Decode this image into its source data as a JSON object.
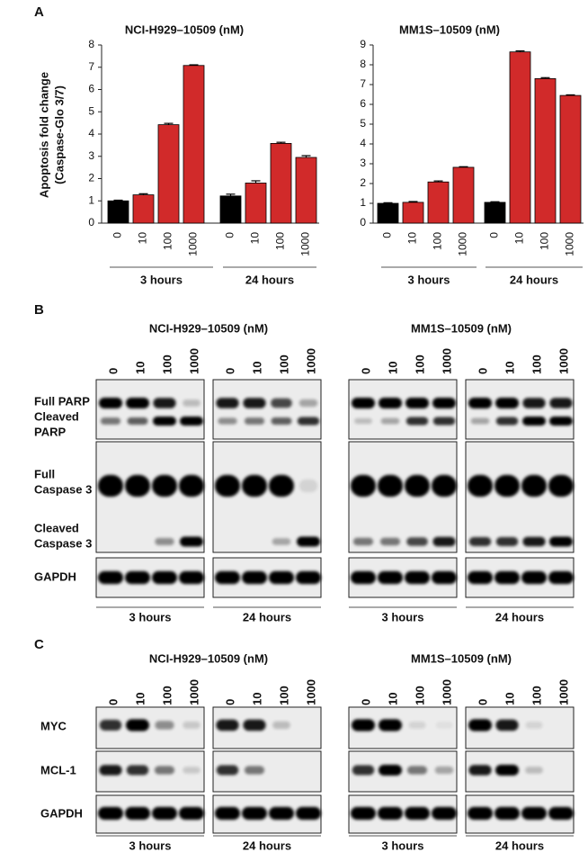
{
  "panel_labels": [
    "A",
    "B",
    "C"
  ],
  "chart_data": [
    {
      "type": "bar",
      "title": "NCI-H929–10509 (nM)",
      "y_label": [
        "Apoptosis fold change",
        "(Caspase-Glo 3/7)"
      ],
      "categories": [
        "0",
        "10",
        "100",
        "1000",
        "0",
        "10",
        "100",
        "1000"
      ],
      "groups": [
        "3 hours",
        "24 hours"
      ],
      "values": [
        1.0,
        1.27,
        4.42,
        7.08,
        1.22,
        1.8,
        3.58,
        2.95
      ],
      "errors": [
        0.03,
        0.05,
        0.06,
        0.03,
        0.08,
        0.1,
        0.05,
        0.08
      ],
      "colors": [
        "#000000",
        "#d12a2a",
        "#d12a2a",
        "#d12a2a",
        "#000000",
        "#d12a2a",
        "#d12a2a",
        "#d12a2a"
      ],
      "ylim": [
        0,
        8
      ],
      "yticks": [
        0,
        1,
        2,
        3,
        4,
        5,
        6,
        7,
        8
      ]
    },
    {
      "type": "bar",
      "title": "MM1S–10509 (nM)",
      "categories": [
        "0",
        "10",
        "100",
        "1000",
        "0",
        "10",
        "100",
        "1000"
      ],
      "groups": [
        "3 hours",
        "24 hours"
      ],
      "values": [
        1.0,
        1.05,
        2.08,
        2.82,
        1.05,
        8.65,
        7.3,
        6.45
      ],
      "errors": [
        0.03,
        0.04,
        0.05,
        0.03,
        0.03,
        0.05,
        0.05,
        0.03
      ],
      "colors": [
        "#000000",
        "#d12a2a",
        "#d12a2a",
        "#d12a2a",
        "#000000",
        "#d12a2a",
        "#d12a2a",
        "#d12a2a"
      ],
      "ylim": [
        0,
        9
      ],
      "yticks": [
        0,
        1,
        2,
        3,
        4,
        5,
        6,
        7,
        8,
        9
      ]
    }
  ],
  "blots": {
    "B": {
      "titles": [
        "NCI-H929–10509 (nM)",
        "MM1S–10509 (nM)"
      ],
      "lanes": [
        "0",
        "10",
        "100",
        "1000"
      ],
      "row_labels": [
        "Full PARP",
        "Cleaved",
        "PARP",
        "Full",
        "Caspase 3",
        "Cleaved",
        "Caspase 3",
        "GAPDH"
      ],
      "groups": [
        "3 hours",
        "24 hours"
      ]
    },
    "C": {
      "titles": [
        "NCI-H929–10509 (nM)",
        "MM1S–10509 (nM)"
      ],
      "lanes": [
        "0",
        "10",
        "100",
        "1000"
      ],
      "row_labels": [
        "MYC",
        "MCL-1",
        "GAPDH"
      ],
      "groups": [
        "3 hours",
        "24 hours"
      ]
    }
  }
}
